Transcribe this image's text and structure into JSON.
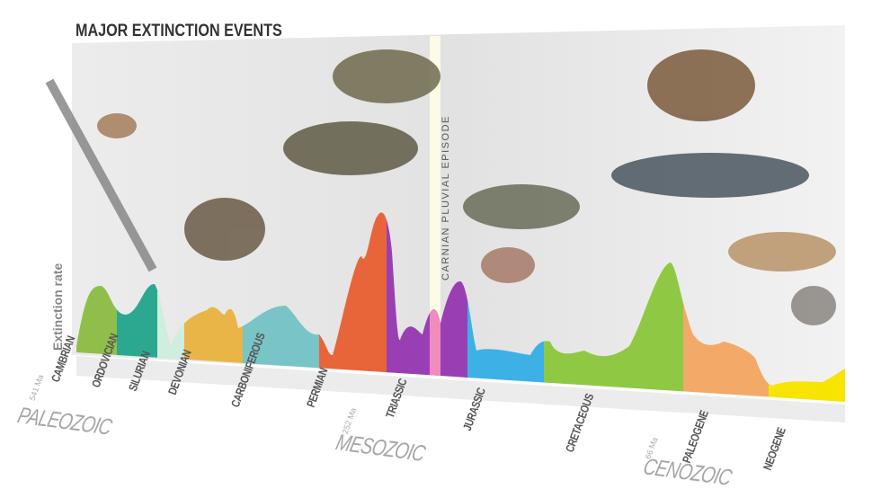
{
  "title": "MAJOR EXTINCTION EVENTS",
  "y_axis_label": "Extinction rate",
  "episode_label": "CARNIAN PLUVIAL EPISODE",
  "periods": [
    {
      "name": "CAMBRIAN",
      "color": "#8fbf4a"
    },
    {
      "name": "ORDOVICIAN",
      "color": "#2ba88f"
    },
    {
      "name": "SILURIAN",
      "color": "#cfeedd"
    },
    {
      "name": "DEVONIAN",
      "color": "#e9b547"
    },
    {
      "name": "CARBONIFEROUS",
      "color": "#79c4c6"
    },
    {
      "name": "PERMIAN",
      "color": "#e8653a"
    },
    {
      "name": "TRIASSIC",
      "color": "#9a3fb3"
    },
    {
      "name": "JURASSIC",
      "color": "#3db0e6"
    },
    {
      "name": "CRETACEOUS",
      "color": "#8fc944"
    },
    {
      "name": "PALEOGENE",
      "color": "#f3a967"
    },
    {
      "name": "NEOGENE",
      "color": "#f7e400"
    }
  ],
  "episode_color": "#f28bbd",
  "eras": [
    "PALEOZOIC",
    "MESOZOIC",
    "CENOZOIC"
  ],
  "ages": [
    "541 Ma",
    "252 Ma",
    "66 Ma"
  ]
}
